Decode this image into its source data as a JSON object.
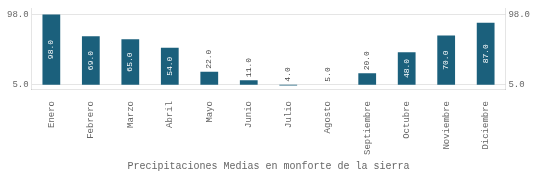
{
  "chart_data": {
    "type": "bar",
    "xlabel": "Precipitaciones Medias en monforte de la sierra",
    "categories": [
      "Enero",
      "Febrero",
      "Marzo",
      "Abril",
      "Mayo",
      "Junio",
      "Julio",
      "Agosto",
      "Septiembre",
      "Octubre",
      "Noviembre",
      "Diciembre"
    ],
    "values": [
      98,
      69,
      65,
      54,
      22,
      11,
      4,
      5,
      20,
      48,
      70,
      87
    ],
    "value_labels": [
      "98.0",
      "69.0",
      "65.0",
      "54.0",
      "22.0",
      "11.0",
      "4.0",
      "5.0",
      "20.0",
      "48.0",
      "70.0",
      "87.0"
    ],
    "base": 5,
    "color": "#1b607c",
    "ylim": [
      -2,
      106
    ],
    "yticks": [
      {
        "value": 98,
        "label": "98.0"
      },
      {
        "value": 5,
        "label": "5.0"
      }
    ],
    "grid": true,
    "data_labels": true
  }
}
